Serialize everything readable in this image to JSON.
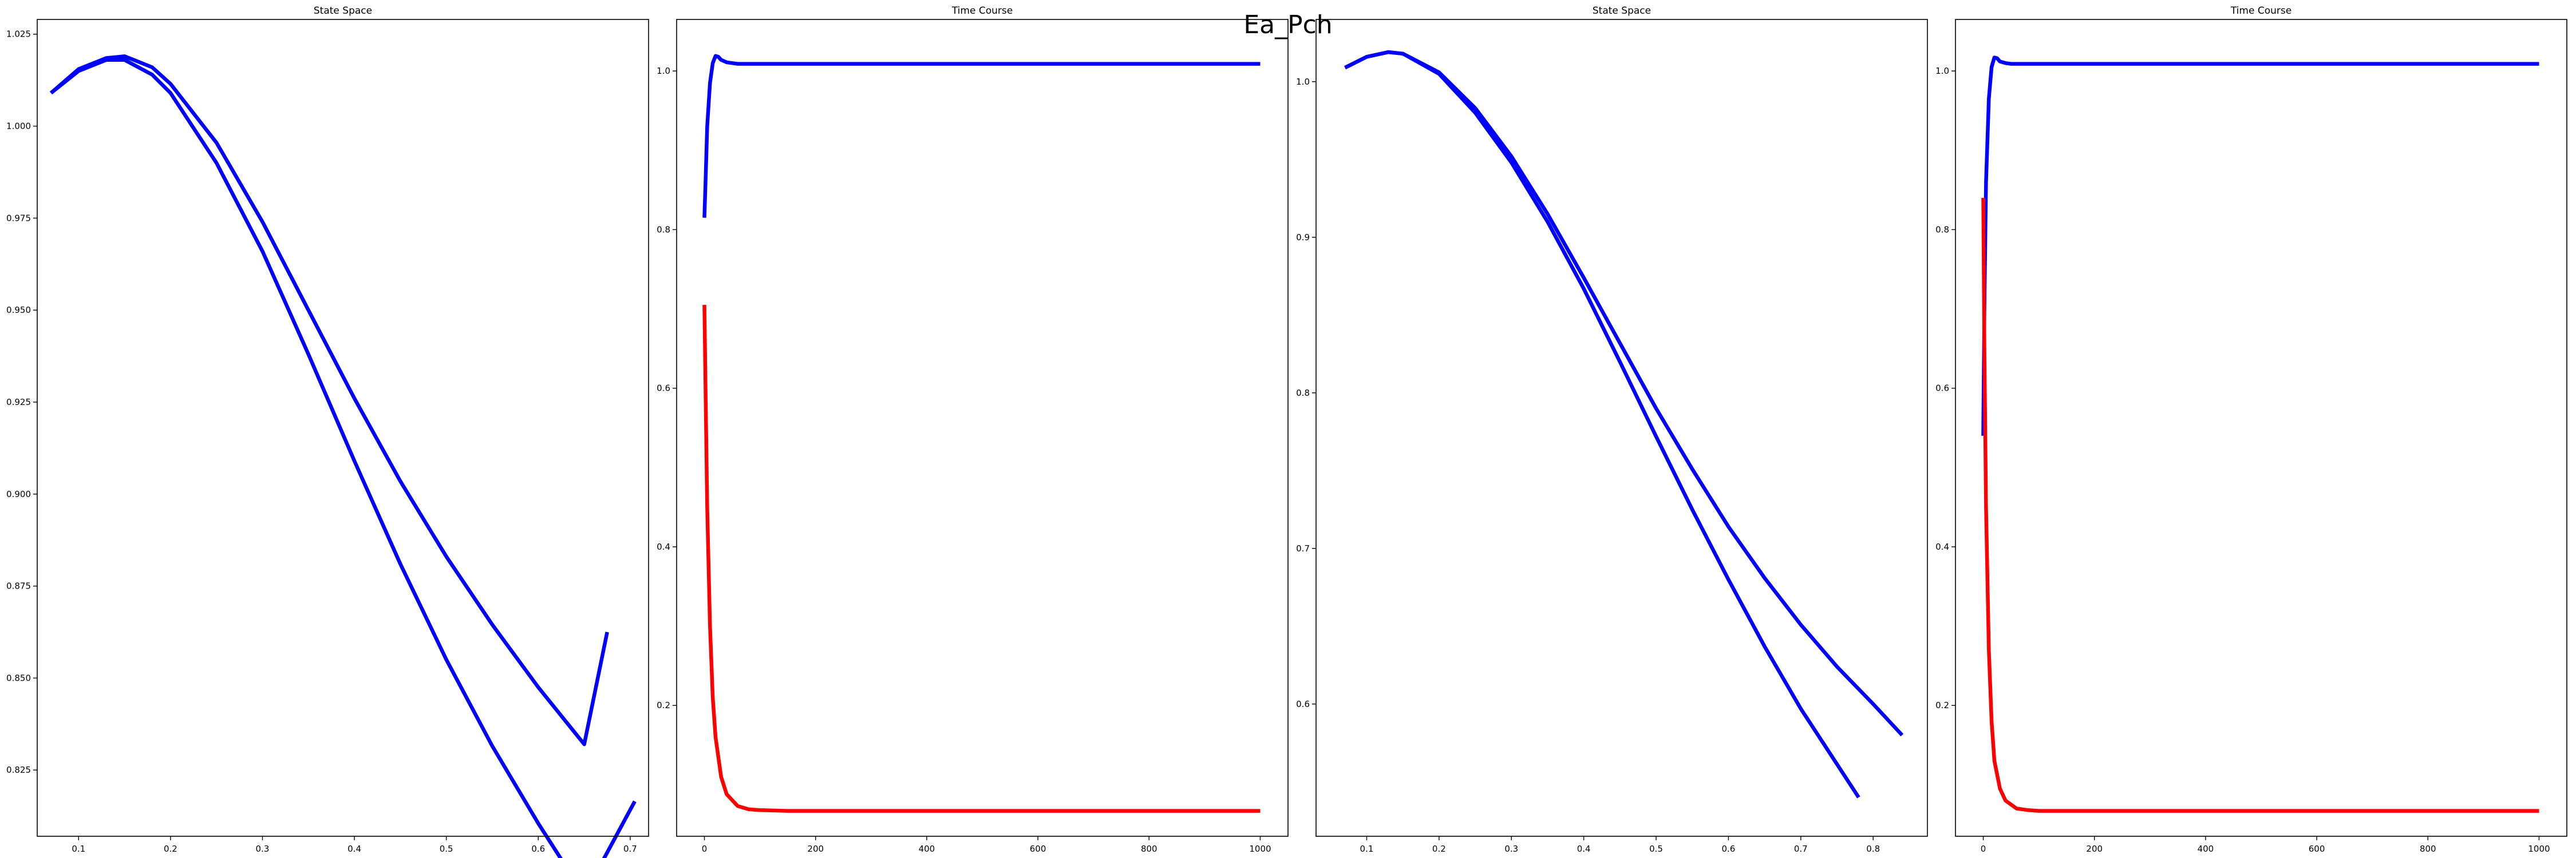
{
  "suptitle": "Ea_Pch",
  "colors": {
    "blue": "#0000ff",
    "red": "#ff0000"
  },
  "chart_data": [
    {
      "type": "line",
      "title": "State Space",
      "xlim": [
        0.055,
        0.72
      ],
      "ylim": [
        0.807,
        1.029
      ],
      "xticks": [
        0.1,
        0.2,
        0.3,
        0.4,
        0.5,
        0.6,
        0.7
      ],
      "xtick_labels": [
        "0.1",
        "0.2",
        "0.3",
        "0.4",
        "0.5",
        "0.6",
        "0.7"
      ],
      "yticks": [
        0.825,
        0.85,
        0.875,
        0.9,
        0.925,
        0.95,
        0.975,
        1.0,
        1.025
      ],
      "ytick_labels": [
        "0.825",
        "0.850",
        "0.875",
        "0.900",
        "0.925",
        "0.950",
        "0.975",
        "1.000",
        "1.025"
      ],
      "series": [
        {
          "color": "blue",
          "x": [
            0.07,
            0.1,
            0.13,
            0.15,
            0.18,
            0.2,
            0.25,
            0.3,
            0.35,
            0.4,
            0.45,
            0.5,
            0.55,
            0.6,
            0.65,
            0.705
          ],
          "y": [
            1.009,
            1.015,
            1.018,
            1.018,
            1.014,
            1.009,
            0.99,
            0.966,
            0.938,
            0.909,
            0.881,
            0.855,
            0.8315,
            0.8105,
            0.791,
            0.8165
          ]
        },
        {
          "color": "blue",
          "x": [
            0.07,
            0.1,
            0.13,
            0.15,
            0.18,
            0.2,
            0.25,
            0.3,
            0.35,
            0.4,
            0.45,
            0.5,
            0.55,
            0.6,
            0.65,
            0.675
          ],
          "y": [
            1.009,
            1.0155,
            1.0185,
            1.019,
            1.016,
            1.0115,
            0.9955,
            0.974,
            0.95,
            0.926,
            0.9035,
            0.883,
            0.8645,
            0.8475,
            0.832,
            0.8625
          ]
        }
      ]
    },
    {
      "type": "line",
      "title": "Time Course",
      "xlim": [
        -50,
        1050
      ],
      "ylim": [
        0.035,
        1.065
      ],
      "xticks": [
        0,
        200,
        400,
        600,
        800,
        1000
      ],
      "xtick_labels": [
        "0",
        "200",
        "400",
        "600",
        "800",
        "1000"
      ],
      "yticks": [
        0.2,
        0.4,
        0.6,
        0.8,
        1.0
      ],
      "ytick_labels": [
        "0.2",
        "0.4",
        "0.6",
        "0.8",
        "1.0"
      ],
      "series": [
        {
          "color": "blue",
          "x": [
            0,
            2,
            5,
            10,
            15,
            20,
            25,
            30,
            40,
            50,
            60,
            80,
            100,
            200,
            400,
            600,
            800,
            1000
          ],
          "y": [
            0.815,
            0.86,
            0.93,
            0.985,
            1.01,
            1.019,
            1.018,
            1.014,
            1.011,
            1.01,
            1.009,
            1.009,
            1.009,
            1.009,
            1.009,
            1.009,
            1.009,
            1.009
          ]
        },
        {
          "color": "red",
          "x": [
            0,
            2,
            5,
            10,
            15,
            20,
            30,
            40,
            60,
            80,
            100,
            150,
            200,
            400,
            600,
            800,
            1000
          ],
          "y": [
            0.705,
            0.6,
            0.45,
            0.3,
            0.21,
            0.16,
            0.11,
            0.088,
            0.073,
            0.069,
            0.068,
            0.067,
            0.067,
            0.067,
            0.067,
            0.067,
            0.067
          ]
        }
      ]
    },
    {
      "type": "line",
      "title": "State Space",
      "xlim": [
        0.03,
        0.875
      ],
      "ylim": [
        0.515,
        1.04
      ],
      "xticks": [
        0.1,
        0.2,
        0.3,
        0.4,
        0.5,
        0.6,
        0.7,
        0.8
      ],
      "xtick_labels": [
        "0.1",
        "0.2",
        "0.3",
        "0.4",
        "0.5",
        "0.6",
        "0.7",
        "0.8"
      ],
      "yticks": [
        0.6,
        0.7,
        0.8,
        0.9,
        1.0
      ],
      "ytick_labels": [
        "0.6",
        "0.7",
        "0.8",
        "0.9",
        "1.0"
      ],
      "series": [
        {
          "color": "blue",
          "x": [
            0.07,
            0.1,
            0.13,
            0.15,
            0.2,
            0.25,
            0.3,
            0.35,
            0.4,
            0.45,
            0.5,
            0.55,
            0.6,
            0.65,
            0.7,
            0.78
          ],
          "y": [
            1.009,
            1.016,
            1.019,
            1.018,
            1.005,
            0.98,
            0.948,
            0.91,
            0.867,
            0.82,
            0.772,
            0.725,
            0.68,
            0.637,
            0.597,
            0.54
          ]
        },
        {
          "color": "blue",
          "x": [
            0.07,
            0.1,
            0.13,
            0.15,
            0.2,
            0.25,
            0.3,
            0.35,
            0.4,
            0.45,
            0.5,
            0.55,
            0.6,
            0.65,
            0.7,
            0.75,
            0.8,
            0.84
          ],
          "y": [
            1.009,
            1.016,
            1.019,
            1.018,
            1.006,
            0.983,
            0.952,
            0.915,
            0.874,
            0.832,
            0.79,
            0.751,
            0.714,
            0.681,
            0.651,
            0.624,
            0.6,
            0.58
          ]
        }
      ]
    },
    {
      "type": "line",
      "title": "Time Course",
      "xlim": [
        -50,
        1050
      ],
      "ylim": [
        0.035,
        1.065
      ],
      "xticks": [
        0,
        200,
        400,
        600,
        800,
        1000
      ],
      "xtick_labels": [
        "0",
        "200",
        "400",
        "600",
        "800",
        "1000"
      ],
      "yticks": [
        0.2,
        0.4,
        0.6,
        0.8,
        1.0
      ],
      "ytick_labels": [
        "0.2",
        "0.4",
        "0.6",
        "0.8",
        "1.0"
      ],
      "series": [
        {
          "color": "blue",
          "x": [
            0,
            2,
            5,
            10,
            15,
            20,
            25,
            30,
            40,
            50,
            60,
            80,
            100,
            200,
            400,
            600,
            800,
            1000
          ],
          "y": [
            0.54,
            0.7,
            0.86,
            0.965,
            1.005,
            1.017,
            1.016,
            1.012,
            1.01,
            1.009,
            1.009,
            1.009,
            1.009,
            1.009,
            1.009,
            1.009,
            1.009,
            1.009
          ]
        },
        {
          "color": "red",
          "x": [
            0,
            2,
            5,
            10,
            15,
            20,
            30,
            40,
            60,
            80,
            100,
            150,
            200,
            400,
            600,
            800,
            1000
          ],
          "y": [
            0.84,
            0.65,
            0.45,
            0.27,
            0.18,
            0.13,
            0.095,
            0.08,
            0.07,
            0.068,
            0.067,
            0.067,
            0.067,
            0.067,
            0.067,
            0.067,
            0.067
          ]
        }
      ]
    }
  ]
}
